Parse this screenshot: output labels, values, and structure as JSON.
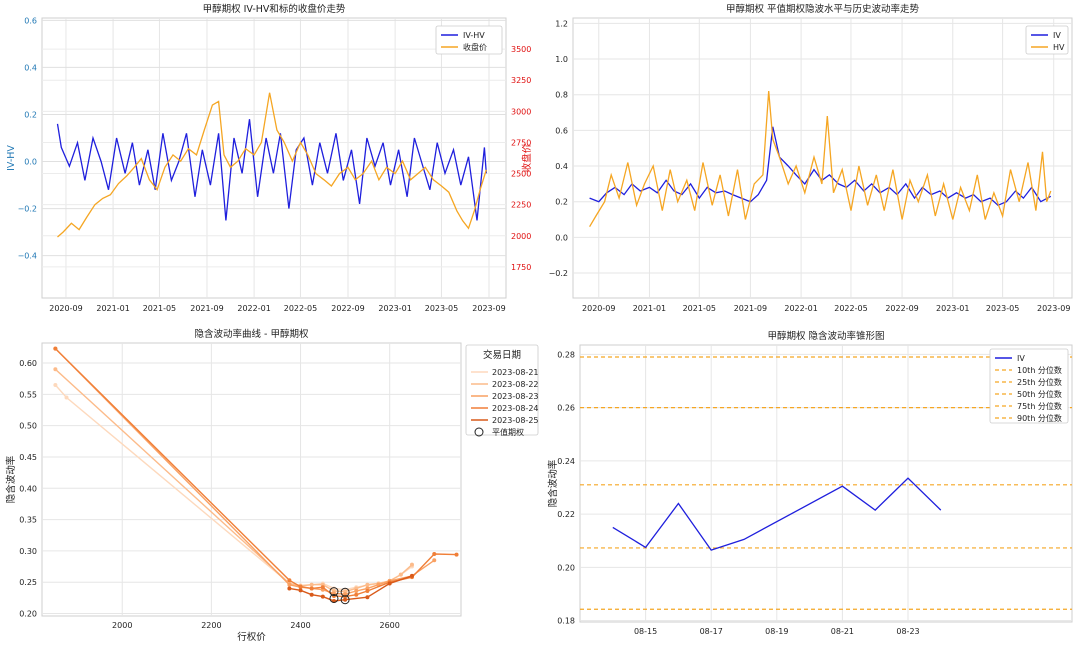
{
  "chart_data": [
    {
      "type": "line",
      "title": "甲醇期权 IV-HV和标的收盘价走势",
      "ylabel": "IV-HV",
      "y2label": "收盘价",
      "legend_position": "top-right",
      "grid": true,
      "ylim": [
        -0.58,
        0.61
      ],
      "y2lim": [
        1500,
        3750
      ],
      "x_ticks": [
        "2020-09",
        "2021-01",
        "2021-05",
        "2021-09",
        "2022-01",
        "2022-05",
        "2022-09",
        "2023-01",
        "2023-05",
        "2023-09"
      ],
      "y_ticks": [
        "−0.4",
        "−0.2",
        "0.0",
        "0.2",
        "0.4",
        "0.6"
      ],
      "y2_ticks": [
        "1750",
        "2000",
        "2250",
        "2500",
        "2750",
        "3000",
        "3250",
        "3500"
      ],
      "series": [
        {
          "name": "IV-HV",
          "axis": "left",
          "color": "#1f1fdd",
          "x": [
            "2020-08-10",
            "2020-08-20",
            "2020-09-10",
            "2020-10-01",
            "2020-10-20",
            "2020-11-10",
            "2020-12-01",
            "2020-12-20",
            "2021-01-10",
            "2021-02-01",
            "2021-02-20",
            "2021-03-10",
            "2021-04-01",
            "2021-04-20",
            "2021-05-10",
            "2021-06-01",
            "2021-06-20",
            "2021-07-10",
            "2021-08-01",
            "2021-08-20",
            "2021-09-10",
            "2021-10-01",
            "2021-10-20",
            "2021-11-10",
            "2021-12-01",
            "2021-12-20",
            "2022-01-10",
            "2022-02-01",
            "2022-02-20",
            "2022-03-10",
            "2022-04-01",
            "2022-04-20",
            "2022-05-10",
            "2022-06-01",
            "2022-06-20",
            "2022-07-10",
            "2022-08-01",
            "2022-08-20",
            "2022-09-10",
            "2022-10-01",
            "2022-10-20",
            "2022-11-10",
            "2022-12-01",
            "2022-12-20",
            "2023-01-10",
            "2023-02-01",
            "2023-02-20",
            "2023-03-10",
            "2023-04-01",
            "2023-04-20",
            "2023-05-10",
            "2023-06-01",
            "2023-06-20",
            "2023-07-10",
            "2023-08-01",
            "2023-08-20",
            "2023-08-25"
          ],
          "y": [
            0.16,
            0.06,
            -0.02,
            0.08,
            -0.08,
            0.1,
            0.0,
            -0.12,
            0.1,
            -0.05,
            0.08,
            -0.1,
            0.05,
            -0.12,
            0.12,
            -0.08,
            0.0,
            0.12,
            -0.15,
            0.05,
            -0.1,
            0.12,
            -0.25,
            0.1,
            -0.05,
            0.18,
            -0.15,
            0.1,
            -0.05,
            0.12,
            -0.2,
            0.05,
            0.1,
            -0.1,
            0.08,
            -0.05,
            0.12,
            -0.08,
            0.05,
            -0.18,
            0.1,
            -0.02,
            0.08,
            -0.1,
            0.05,
            -0.15,
            0.1,
            0.0,
            -0.12,
            0.08,
            -0.05,
            0.05,
            -0.1,
            0.02,
            -0.25,
            0.06,
            -0.05
          ]
        },
        {
          "name": "收盘价",
          "axis": "right",
          "color": "#f5a623",
          "x": [
            "2020-08-10",
            "2020-08-25",
            "2020-09-15",
            "2020-10-05",
            "2020-10-25",
            "2020-11-15",
            "2020-12-05",
            "2020-12-25",
            "2021-01-15",
            "2021-02-05",
            "2021-02-25",
            "2021-03-15",
            "2021-04-05",
            "2021-04-25",
            "2021-05-15",
            "2021-06-05",
            "2021-06-25",
            "2021-07-15",
            "2021-08-05",
            "2021-08-25",
            "2021-09-15",
            "2021-10-01",
            "2021-10-15",
            "2021-11-01",
            "2021-11-20",
            "2021-12-10",
            "2022-01-01",
            "2022-01-20",
            "2022-02-10",
            "2022-03-01",
            "2022-03-20",
            "2022-04-10",
            "2022-05-01",
            "2022-05-20",
            "2022-06-10",
            "2022-07-01",
            "2022-07-20",
            "2022-08-10",
            "2022-09-01",
            "2022-09-20",
            "2022-10-10",
            "2022-11-01",
            "2022-11-20",
            "2022-12-10",
            "2023-01-01",
            "2023-01-20",
            "2023-02-10",
            "2023-03-01",
            "2023-03-20",
            "2023-04-10",
            "2023-05-01",
            "2023-05-20",
            "2023-06-10",
            "2023-06-25",
            "2023-07-10",
            "2023-07-25",
            "2023-08-10",
            "2023-08-25"
          ],
          "y": [
            1990,
            2030,
            2100,
            2050,
            2150,
            2250,
            2300,
            2330,
            2420,
            2480,
            2550,
            2620,
            2450,
            2370,
            2550,
            2650,
            2600,
            2700,
            2650,
            2850,
            3050,
            3080,
            2650,
            2550,
            2600,
            2700,
            2650,
            2750,
            3150,
            2850,
            2750,
            2600,
            2750,
            2650,
            2500,
            2450,
            2400,
            2500,
            2550,
            2450,
            2500,
            2600,
            2450,
            2550,
            2500,
            2600,
            2450,
            2500,
            2550,
            2450,
            2400,
            2350,
            2200,
            2120,
            2060,
            2200,
            2380,
            2530
          ]
        }
      ]
    },
    {
      "type": "line",
      "title": "甲醇期权 平值期权隐波水平与历史波动率走势",
      "legend_position": "top-right",
      "grid": true,
      "ylim": [
        -0.34,
        1.23
      ],
      "x_ticks": [
        "2020-09",
        "2021-01",
        "2021-05",
        "2021-09",
        "2022-01",
        "2022-05",
        "2022-09",
        "2023-01",
        "2023-05",
        "2023-09"
      ],
      "y_ticks": [
        "−0.2",
        "0.0",
        "0.2",
        "0.4",
        "0.6",
        "0.8",
        "1.0",
        "1.2"
      ],
      "series": [
        {
          "name": "IV",
          "color": "#1f1fdd",
          "x": [
            "2020-08-10",
            "2020-09-01",
            "2020-09-20",
            "2020-10-10",
            "2020-11-01",
            "2020-11-20",
            "2020-12-10",
            "2021-01-01",
            "2021-01-20",
            "2021-02-10",
            "2021-03-01",
            "2021-03-20",
            "2021-04-10",
            "2021-05-01",
            "2021-05-20",
            "2021-06-10",
            "2021-07-01",
            "2021-07-20",
            "2021-08-10",
            "2021-09-01",
            "2021-09-20",
            "2021-10-10",
            "2021-10-25",
            "2021-11-10",
            "2021-12-01",
            "2021-12-20",
            "2022-01-10",
            "2022-02-01",
            "2022-02-20",
            "2022-03-10",
            "2022-04-01",
            "2022-04-20",
            "2022-05-10",
            "2022-06-01",
            "2022-06-20",
            "2022-07-10",
            "2022-08-01",
            "2022-08-20",
            "2022-09-10",
            "2022-10-01",
            "2022-10-20",
            "2022-11-10",
            "2022-12-01",
            "2022-12-20",
            "2023-01-10",
            "2023-02-01",
            "2023-02-20",
            "2023-03-10",
            "2023-04-01",
            "2023-04-20",
            "2023-05-10",
            "2023-06-01",
            "2023-06-20",
            "2023-07-10",
            "2023-08-01",
            "2023-08-25"
          ],
          "y": [
            0.22,
            0.2,
            0.25,
            0.28,
            0.24,
            0.3,
            0.26,
            0.28,
            0.25,
            0.32,
            0.26,
            0.24,
            0.3,
            0.22,
            0.28,
            0.25,
            0.26,
            0.24,
            0.22,
            0.2,
            0.24,
            0.32,
            0.62,
            0.45,
            0.4,
            0.35,
            0.3,
            0.38,
            0.32,
            0.35,
            0.3,
            0.28,
            0.32,
            0.26,
            0.3,
            0.25,
            0.28,
            0.24,
            0.3,
            0.22,
            0.28,
            0.24,
            0.26,
            0.22,
            0.25,
            0.22,
            0.24,
            0.2,
            0.22,
            0.18,
            0.2,
            0.26,
            0.22,
            0.28,
            0.2,
            0.23
          ]
        },
        {
          "name": "HV",
          "color": "#f5a623",
          "x": [
            "2020-08-10",
            "2020-08-25",
            "2020-09-15",
            "2020-10-01",
            "2020-10-20",
            "2020-11-10",
            "2020-12-01",
            "2020-12-20",
            "2021-01-10",
            "2021-02-01",
            "2021-02-20",
            "2021-03-10",
            "2021-04-01",
            "2021-04-20",
            "2021-05-10",
            "2021-06-01",
            "2021-06-20",
            "2021-07-10",
            "2021-08-01",
            "2021-08-20",
            "2021-09-10",
            "2021-10-01",
            "2021-10-15",
            "2021-10-25",
            "2021-11-10",
            "2021-12-01",
            "2021-12-20",
            "2022-01-10",
            "2022-02-01",
            "2022-02-20",
            "2022-03-05",
            "2022-03-20",
            "2022-04-10",
            "2022-05-01",
            "2022-05-20",
            "2022-06-10",
            "2022-07-01",
            "2022-07-20",
            "2022-08-10",
            "2022-09-01",
            "2022-09-20",
            "2022-10-10",
            "2022-11-01",
            "2022-11-20",
            "2022-12-10",
            "2023-01-01",
            "2023-01-20",
            "2023-02-10",
            "2023-03-01",
            "2023-03-20",
            "2023-04-10",
            "2023-05-01",
            "2023-05-20",
            "2023-06-10",
            "2023-07-01",
            "2023-07-20",
            "2023-08-05",
            "2023-08-15",
            "2023-08-25"
          ],
          "y": [
            0.06,
            0.12,
            0.2,
            0.35,
            0.22,
            0.42,
            0.18,
            0.3,
            0.4,
            0.15,
            0.38,
            0.2,
            0.32,
            0.15,
            0.42,
            0.18,
            0.35,
            0.12,
            0.38,
            0.1,
            0.3,
            0.35,
            0.82,
            0.55,
            0.45,
            0.3,
            0.4,
            0.25,
            0.45,
            0.3,
            0.68,
            0.25,
            0.38,
            0.15,
            0.4,
            0.18,
            0.35,
            0.15,
            0.38,
            0.1,
            0.32,
            0.2,
            0.35,
            0.12,
            0.3,
            0.1,
            0.28,
            0.15,
            0.35,
            0.1,
            0.25,
            0.12,
            0.38,
            0.2,
            0.42,
            0.15,
            0.48,
            0.2,
            0.26
          ]
        }
      ]
    },
    {
      "type": "line",
      "title": "隐含波动率曲线 - 甲醇期权",
      "xlabel": "行权价",
      "ylabel": "隐含波动率",
      "legend_title": "交易日期",
      "legend_position": "top-right",
      "grid": true,
      "xlim": [
        1820,
        2760
      ],
      "ylim": [
        0.196,
        0.632
      ],
      "x_ticks": [
        "2000",
        "2200",
        "2400",
        "2600"
      ],
      "y_ticks": [
        "0.20",
        "0.25",
        "0.30",
        "0.35",
        "0.40",
        "0.45",
        "0.50",
        "0.55",
        "0.60"
      ],
      "atm_label": "平值期权",
      "atm_points": [
        [
          2475,
          0.235
        ],
        [
          2500,
          0.234
        ],
        [
          2475,
          0.224
        ],
        [
          2500,
          0.222
        ]
      ],
      "series": [
        {
          "name": "2023-08-21",
          "color": "#fdd9bd",
          "x": [
            1850,
            1875,
            2375,
            2400,
            2425,
            2450,
            2475,
            2500,
            2525,
            2550,
            2575,
            2600,
            2625,
            2650
          ],
          "y": [
            0.565,
            0.545,
            0.248,
            0.245,
            0.246,
            0.248,
            0.24,
            0.238,
            0.242,
            0.245,
            0.248,
            0.252,
            0.262,
            0.275
          ]
        },
        {
          "name": "2023-08-22",
          "color": "#fcbb8a",
          "x": [
            1850,
            2375,
            2400,
            2425,
            2450,
            2475,
            2500,
            2525,
            2550,
            2575,
            2600,
            2625,
            2650
          ],
          "y": [
            0.59,
            0.248,
            0.244,
            0.246,
            0.246,
            0.236,
            0.235,
            0.24,
            0.246,
            0.248,
            0.252,
            0.262,
            0.278
          ]
        },
        {
          "name": "2023-08-23",
          "color": "#f9a062",
          "x": [
            1850,
            2375,
            2400,
            2425,
            2450,
            2475,
            2500,
            2525,
            2550,
            2575,
            2600,
            2650,
            2700
          ],
          "y": [
            0.623,
            0.246,
            0.242,
            0.24,
            0.238,
            0.232,
            0.231,
            0.236,
            0.24,
            0.246,
            0.252,
            0.26,
            0.285
          ]
        },
        {
          "name": "2023-08-24",
          "color": "#f07f38",
          "x": [
            1850,
            2375,
            2400,
            2425,
            2450,
            2475,
            2500,
            2525,
            2550,
            2600,
            2650,
            2700,
            2750
          ],
          "y": [
            0.623,
            0.253,
            0.243,
            0.24,
            0.242,
            0.228,
            0.227,
            0.23,
            0.236,
            0.25,
            0.258,
            0.295,
            0.294
          ]
        },
        {
          "name": "2023-08-25",
          "color": "#d95a1a",
          "x": [
            2375,
            2400,
            2425,
            2450,
            2475,
            2500,
            2550,
            2600,
            2650
          ],
          "y": [
            0.24,
            0.237,
            0.23,
            0.227,
            0.22,
            0.222,
            0.226,
            0.248,
            0.26
          ]
        }
      ]
    },
    {
      "type": "line",
      "title": "甲醇期权 隐含波动率锥形图",
      "ylabel": "隐含波动率",
      "legend_position": "top-right",
      "grid": true,
      "xlim": [
        0,
        15
      ],
      "ylim": [
        0.1795,
        0.2835
      ],
      "x_ticks": [
        {
          "pos": 2,
          "label": "08-15"
        },
        {
          "pos": 4,
          "label": "08-17"
        },
        {
          "pos": 6,
          "label": "08-19"
        },
        {
          "pos": 8,
          "label": "08-21"
        },
        {
          "pos": 10,
          "label": "08-23"
        }
      ],
      "y_ticks": [
        "0.18",
        "0.20",
        "0.22",
        "0.24",
        "0.26",
        "0.28"
      ],
      "series": [
        {
          "name": "IV",
          "color": "#1f1fdd",
          "x": [
            1,
            2,
            3,
            4,
            5,
            8,
            9,
            10,
            11
          ],
          "y": [
            0.215,
            0.2075,
            0.224,
            0.2065,
            0.2105,
            0.2305,
            0.2215,
            0.2335,
            0.2215
          ]
        }
      ],
      "quantiles": [
        {
          "name": "10th 分位数",
          "value": 0.1843,
          "color": "#f5a623"
        },
        {
          "name": "25th 分位数",
          "value": 0.2073,
          "color": "#f5a623"
        },
        {
          "name": "50th 分位数",
          "value": 0.231,
          "color": "#f5a623"
        },
        {
          "name": "75th 分位数",
          "value": 0.26,
          "color": "#f5a623"
        },
        {
          "name": "90th 分位数",
          "value": 0.279,
          "color": "#f5a623"
        }
      ]
    }
  ]
}
